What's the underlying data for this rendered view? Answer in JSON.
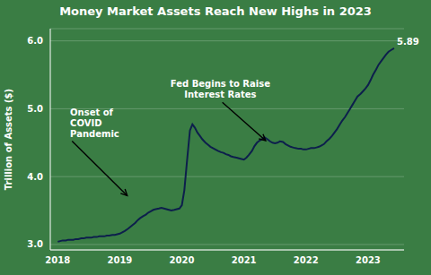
{
  "chart_data": {
    "type": "line",
    "title": "Money Market Assets Reach New Highs in 2023",
    "y_label": "Trillion of Assets ($)",
    "color": "#0d1f4c",
    "xlim": [
      2017.88,
      2023.58
    ],
    "ylim": [
      2.92,
      6.18
    ],
    "xticks": [
      2018,
      2019,
      2020,
      2021,
      2022,
      2023
    ],
    "yticks": [
      {
        "value": 3.0,
        "label": "3.0"
      },
      {
        "value": 4.0,
        "label": "4.0"
      },
      {
        "value": 5.0,
        "label": "5.0"
      },
      {
        "value": 6.0,
        "label": "6.0"
      }
    ],
    "grid": "y",
    "x": [
      2018.0,
      2018.04,
      2018.08,
      2018.13,
      2018.17,
      2018.21,
      2018.25,
      2018.29,
      2018.33,
      2018.38,
      2018.42,
      2018.46,
      2018.5,
      2018.54,
      2018.58,
      2018.63,
      2018.67,
      2018.71,
      2018.75,
      2018.79,
      2018.83,
      2018.88,
      2018.92,
      2018.96,
      2019.0,
      2019.04,
      2019.08,
      2019.13,
      2019.17,
      2019.21,
      2019.25,
      2019.29,
      2019.33,
      2019.38,
      2019.42,
      2019.46,
      2019.5,
      2019.54,
      2019.58,
      2019.63,
      2019.67,
      2019.71,
      2019.75,
      2019.79,
      2019.83,
      2019.88,
      2019.92,
      2019.96,
      2020.0,
      2020.04,
      2020.08,
      2020.13,
      2020.17,
      2020.21,
      2020.25,
      2020.29,
      2020.33,
      2020.38,
      2020.42,
      2020.46,
      2020.5,
      2020.54,
      2020.58,
      2020.63,
      2020.67,
      2020.71,
      2020.75,
      2020.79,
      2020.83,
      2020.88,
      2020.92,
      2020.96,
      2021.0,
      2021.04,
      2021.08,
      2021.13,
      2021.17,
      2021.21,
      2021.25,
      2021.29,
      2021.33,
      2021.38,
      2021.42,
      2021.46,
      2021.5,
      2021.54,
      2021.58,
      2021.63,
      2021.67,
      2021.71,
      2021.75,
      2021.79,
      2021.83,
      2021.88,
      2021.92,
      2021.96,
      2022.0,
      2022.04,
      2022.08,
      2022.13,
      2022.17,
      2022.21,
      2022.25,
      2022.29,
      2022.33,
      2022.38,
      2022.42,
      2022.46,
      2022.5,
      2022.54,
      2022.58,
      2022.63,
      2022.67,
      2022.71,
      2022.75,
      2022.79,
      2022.83,
      2022.88,
      2022.92,
      2022.96,
      2023.0,
      2023.04,
      2023.08,
      2023.13,
      2023.17,
      2023.21,
      2023.25,
      2023.29,
      2023.33,
      2023.38,
      2023.42
    ],
    "values": [
      3.04,
      3.05,
      3.06,
      3.06,
      3.07,
      3.07,
      3.07,
      3.08,
      3.08,
      3.09,
      3.09,
      3.1,
      3.1,
      3.1,
      3.11,
      3.11,
      3.12,
      3.12,
      3.12,
      3.13,
      3.13,
      3.14,
      3.14,
      3.15,
      3.16,
      3.18,
      3.2,
      3.23,
      3.26,
      3.29,
      3.32,
      3.36,
      3.39,
      3.42,
      3.44,
      3.47,
      3.49,
      3.51,
      3.52,
      3.53,
      3.54,
      3.53,
      3.52,
      3.51,
      3.5,
      3.51,
      3.52,
      3.53,
      3.58,
      3.8,
      4.2,
      4.68,
      4.77,
      4.72,
      4.65,
      4.6,
      4.55,
      4.5,
      4.47,
      4.44,
      4.42,
      4.4,
      4.38,
      4.36,
      4.35,
      4.33,
      4.32,
      4.3,
      4.29,
      4.28,
      4.27,
      4.26,
      4.25,
      4.28,
      4.32,
      4.38,
      4.45,
      4.5,
      4.53,
      4.55,
      4.58,
      4.55,
      4.52,
      4.5,
      4.49,
      4.5,
      4.52,
      4.51,
      4.48,
      4.46,
      4.44,
      4.43,
      4.42,
      4.41,
      4.41,
      4.4,
      4.4,
      4.41,
      4.42,
      4.42,
      4.43,
      4.44,
      4.46,
      4.48,
      4.52,
      4.56,
      4.6,
      4.65,
      4.7,
      4.76,
      4.82,
      4.88,
      4.94,
      5.0,
      5.06,
      5.12,
      5.18,
      5.22,
      5.26,
      5.3,
      5.35,
      5.42,
      5.5,
      5.58,
      5.65,
      5.7,
      5.75,
      5.8,
      5.84,
      5.87,
      5.89
    ],
    "annotations": [
      {
        "text": "Onset of\nCOVID\nPandemic",
        "xy": [
          2019.12,
          3.72
        ],
        "xytext": [
          2018.2,
          4.55
        ]
      },
      {
        "text": "Fed Begins to Raise\nInterest Rates",
        "xy": [
          2021.35,
          4.53
        ],
        "xytext": [
          2020.62,
          5.12
        ]
      }
    ],
    "final_value": 5.89
  }
}
